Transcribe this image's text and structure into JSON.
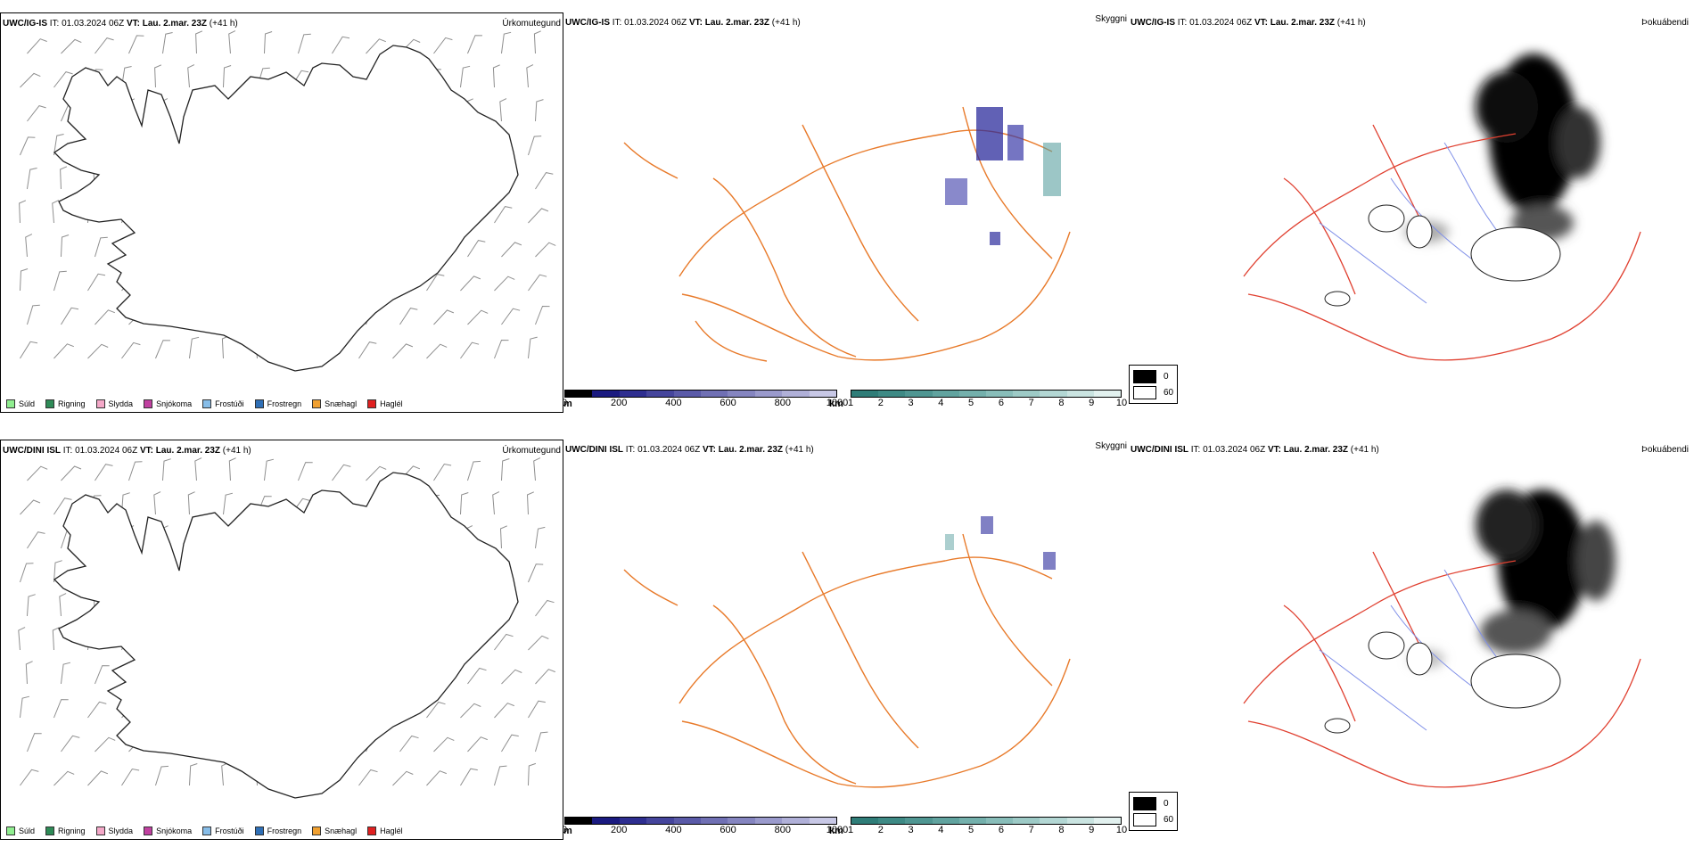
{
  "rows": [
    {
      "model": "UWC/IG-IS",
      "it_label": "IT:",
      "it_value": "01.03.2024 06Z",
      "vt_label": "VT:",
      "vt_value": "Lau. 2.mar. 23Z",
      "lead": "(+41 h)"
    },
    {
      "model": "UWC/DINI ISL",
      "it_label": "IT:",
      "it_value": "01.03.2024 06Z",
      "vt_label": "VT:",
      "vt_value": "Lau. 2.mar. 23Z",
      "lead": "(+41 h)"
    }
  ],
  "panel_titles": {
    "precip_type": "Úrkomutegund",
    "visibility": "Skyggni",
    "fog_index": "Þokuábendi"
  },
  "precip_legend": [
    {
      "label": "Súld",
      "color": "#90ee90"
    },
    {
      "label": "Rigning",
      "color": "#2e8b57"
    },
    {
      "label": "Slydda",
      "color": "#f4a8c8"
    },
    {
      "label": "Snjókoma",
      "color": "#c040a0"
    },
    {
      "label": "Frostúði",
      "color": "#87bde8"
    },
    {
      "label": "Frostregn",
      "color": "#2f6fb6"
    },
    {
      "label": "Snæhagl",
      "color": "#f0a030"
    },
    {
      "label": "Haglél",
      "color": "#e02020"
    }
  ],
  "visibility_m_scale": {
    "unit": "m",
    "ticks": [
      "0",
      "200",
      "400",
      "600",
      "800",
      "1000"
    ],
    "colors": [
      "#000000",
      "#1a1a80",
      "#2e2e90",
      "#45459c",
      "#5a5aa8",
      "#7070b4",
      "#8585c0",
      "#9a9acc",
      "#b0b0d8",
      "#c8c8e6"
    ]
  },
  "visibility_km_scale": {
    "unit": "km",
    "ticks": [
      "1",
      "2",
      "3",
      "4",
      "5",
      "6",
      "7",
      "8",
      "9",
      "10"
    ],
    "colors": [
      "#2f7d78",
      "#3e8a85",
      "#4f9692",
      "#61a39f",
      "#74b0ac",
      "#88bdb9",
      "#9dcac6",
      "#b3d7d4",
      "#cae4e1",
      "#e2f1ef"
    ]
  },
  "fog_scale": [
    {
      "label": "0",
      "color": "#000000"
    },
    {
      "label": "60",
      "color": "#ffffff"
    }
  ],
  "colors": {
    "land_fill_fog": "#f1dccd",
    "roads": "#e87a2a",
    "roads_red": "#e04030",
    "rivers": "#7f8fe8",
    "coast": "#000000"
  }
}
